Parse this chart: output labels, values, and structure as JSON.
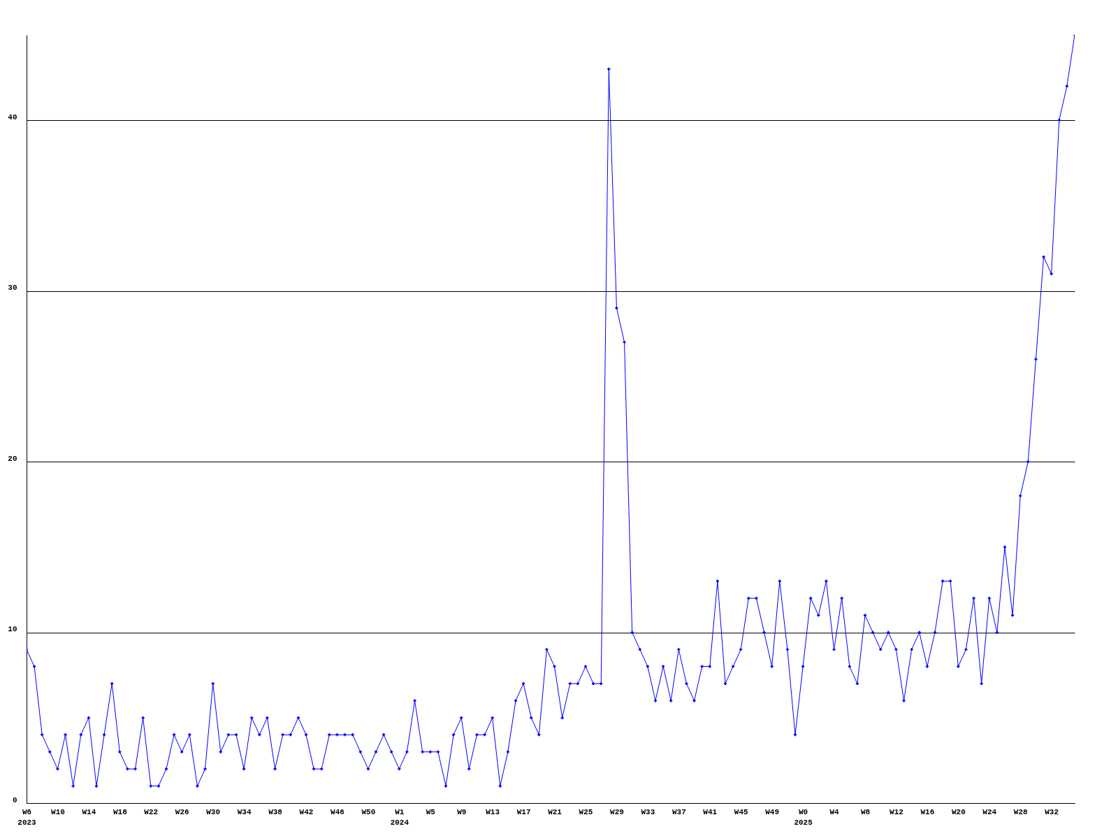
{
  "chart_data": {
    "type": "line",
    "categories": [
      "W6",
      null,
      null,
      null,
      "W10",
      null,
      null,
      null,
      "W14",
      null,
      null,
      null,
      "W18",
      null,
      null,
      null,
      "W22",
      null,
      null,
      null,
      "W26",
      null,
      null,
      null,
      "W30",
      null,
      null,
      null,
      "W34",
      null,
      null,
      null,
      "W38",
      null,
      null,
      null,
      "W42",
      null,
      null,
      null,
      "W46",
      null,
      null,
      null,
      "W50",
      null,
      null,
      null,
      "W1",
      null,
      null,
      null,
      "W5",
      null,
      null,
      null,
      "W9",
      null,
      null,
      null,
      "W13",
      null,
      null,
      null,
      "W17",
      null,
      null,
      null,
      "W21",
      null,
      null,
      null,
      "W25",
      null,
      null,
      null,
      "W29",
      null,
      null,
      null,
      "W33",
      null,
      null,
      null,
      "W37",
      null,
      null,
      null,
      "W41",
      null,
      null,
      null,
      "W45",
      null,
      null,
      null,
      "W49",
      null,
      null,
      null,
      "W0",
      null,
      null,
      null,
      "W4",
      null,
      null,
      null,
      "W8",
      null,
      null,
      null,
      "W12",
      null,
      null,
      null,
      "W16",
      null,
      null,
      null,
      "W20",
      null,
      null,
      null,
      "W24",
      null,
      null,
      null,
      "W28",
      null,
      null,
      null,
      "W32",
      null,
      null,
      null
    ],
    "series": [
      {
        "color": "#0000ff",
        "values": [
          9,
          8,
          4,
          3,
          2,
          4,
          1,
          4,
          5,
          1,
          4,
          7,
          3,
          2,
          2,
          5,
          1,
          1,
          2,
          4,
          3,
          4,
          1,
          2,
          7,
          3,
          4,
          4,
          2,
          5,
          4,
          5,
          2,
          4,
          4,
          5,
          4,
          2,
          2,
          4,
          4,
          4,
          4,
          3,
          2,
          3,
          4,
          3,
          2,
          3,
          6,
          3,
          3,
          3,
          1,
          4,
          5,
          2,
          4,
          4,
          5,
          1,
          3,
          6,
          7,
          5,
          4,
          9,
          8,
          5,
          7,
          7,
          8,
          7,
          7,
          43,
          29,
          27,
          10,
          9,
          8,
          6,
          8,
          6,
          9,
          7,
          6,
          8,
          8,
          13,
          7,
          8,
          9,
          12,
          12,
          10,
          8,
          13,
          9,
          4,
          8,
          12,
          11,
          13,
          9,
          12,
          8,
          7,
          11,
          10,
          9,
          10,
          9,
          6,
          9,
          10,
          8,
          10,
          13,
          13,
          8,
          9,
          12,
          7,
          12,
          10,
          15,
          11,
          18,
          20,
          26,
          32,
          31,
          40,
          42,
          45
        ]
      }
    ],
    "annotations": [
      "2023",
      "2024",
      "2025"
    ],
    "ylim": [
      0,
      45
    ],
    "yticks": [
      0,
      10,
      20,
      30,
      40
    ],
    "grid": "y",
    "marker": "cross",
    "line_style": "solid"
  }
}
